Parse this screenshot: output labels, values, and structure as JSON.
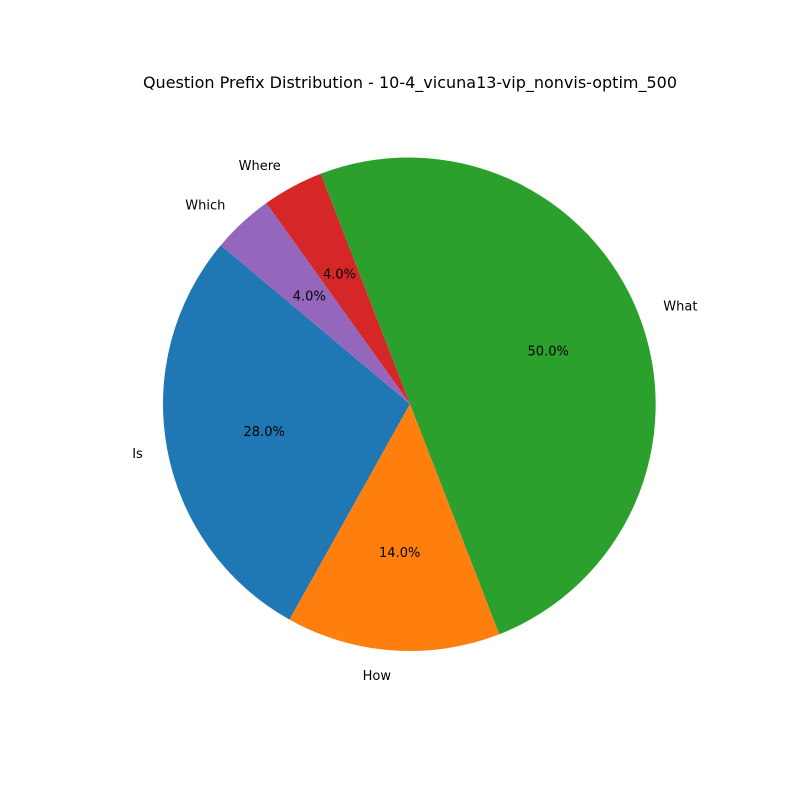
{
  "chart_data": {
    "type": "pie",
    "title": "Question Prefix Distribution - 10-4_vicuna13-vip_nonvis-optim_500",
    "start_angle_deg": 140,
    "direction": "counterclockwise",
    "slices": [
      {
        "label": "Is",
        "value": 28.0,
        "pct_label": "28.0%",
        "color": "#1f77b4"
      },
      {
        "label": "How",
        "value": 14.0,
        "pct_label": "14.0%",
        "color": "#ff7f0e"
      },
      {
        "label": "What",
        "value": 50.0,
        "pct_label": "50.0%",
        "color": "#2ca02c"
      },
      {
        "label": "Where",
        "value": 4.0,
        "pct_label": "4.0%",
        "color": "#d62728"
      },
      {
        "label": "Which",
        "value": 4.0,
        "pct_label": "4.0%",
        "color": "#9467bd"
      }
    ]
  }
}
